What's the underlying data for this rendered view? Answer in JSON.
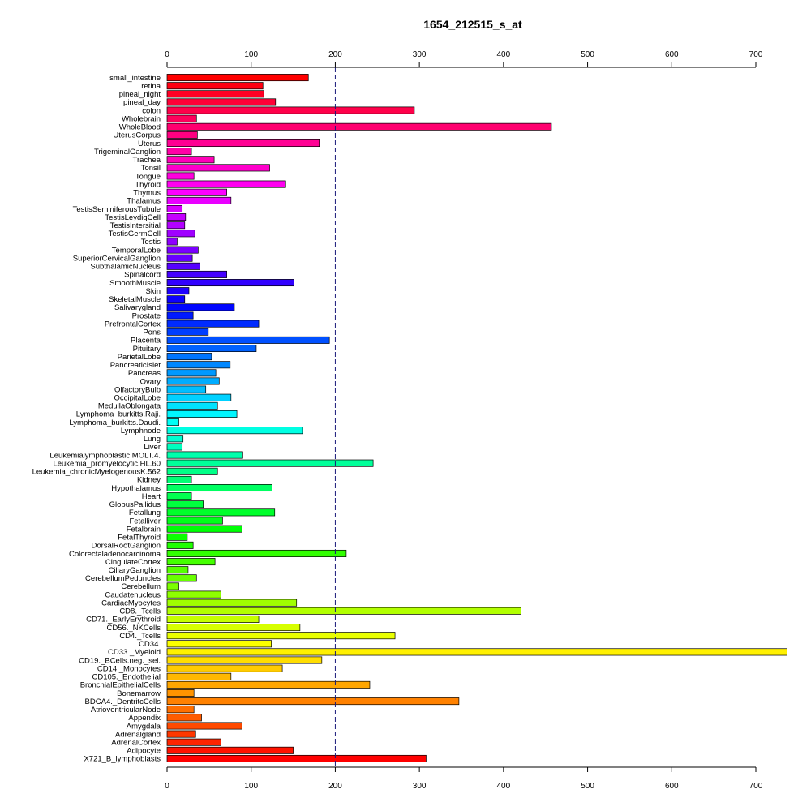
{
  "chart_data": {
    "type": "bar",
    "orientation": "horizontal",
    "title": "1654_212515_s_at",
    "xlim": [
      0,
      700
    ],
    "xticks": [
      0,
      100,
      200,
      300,
      400,
      500,
      600,
      700
    ],
    "reference_line": 200,
    "grid": false,
    "categories": [
      "small_intestine",
      "retina",
      "pineal_night",
      "pineal_day",
      "colon",
      "Wholebrain",
      "WholeBlood",
      "UterusCorpus",
      "Uterus",
      "TrigeminalGanglion",
      "Trachea",
      "Tonsil",
      "Tongue",
      "Thyroid",
      "Thymus",
      "Thalamus",
      "TestisSeminiferousTubule",
      "TestisLeydigCell",
      "TestisIntersitial",
      "TestisGermCell",
      "Testis",
      "TemporalLobe",
      "SuperiorCervicalGanglion",
      "SubthalamicNucleus",
      "Spinalcord",
      "SmoothMuscle",
      "Skin",
      "SkeletalMuscle",
      "Salivarygland",
      "Prostate",
      "PrefrontalCortex",
      "Pons",
      "Placenta",
      "Pituitary",
      "ParietalLobe",
      "PancreaticIslet",
      "Pancreas",
      "Ovary",
      "OlfactoryBulb",
      "OccipitalLobe",
      "MedullaOblongata",
      "Lymphoma_burkitts.Raji.",
      "Lymphoma_burkitts.Daudi.",
      "Lymphnode",
      "Lung",
      "Liver",
      "Leukemialymphoblastic.MOLT.4.",
      "Leukemia_promyelocytic.HL.60",
      "Leukemia_chronicMyelogenousK.562",
      "Kidney",
      "Hypothalamus",
      "Heart",
      "GlobusPallidus",
      "Fetallung",
      "Fetalliver",
      "Fetalbrain",
      "FetalThyroid",
      "DorsalRootGanglion",
      "Colorectaladenocarcinoma",
      "CingulateCortex",
      "CiliaryGanglion",
      "CerebellumPeduncles",
      "Cerebellum",
      "Caudatenucleus",
      "CardiacMyocytes",
      "CD8._Tcells",
      "CD71._EarlyErythroid",
      "CD56._NKCells",
      "CD4._Tcells",
      "CD34.",
      "CD33._Myeloid",
      "CD19._BCells.neg._sel.",
      "CD14._Monocytes",
      "CD105._Endothelial",
      "BronchialEpithelialCells",
      "Bonemarrow",
      "BDCA4._DentritcCells",
      "AtrioventricularNode",
      "Appendix",
      "Amygdala",
      "Adrenalgland",
      "AdrenalCortex",
      "Adipocyte",
      "X721_B_lymphoblasts"
    ],
    "values": [
      168,
      114,
      115,
      129,
      294,
      35,
      457,
      36,
      181,
      29,
      56,
      122,
      32,
      141,
      71,
      76,
      18,
      22,
      21,
      33,
      12,
      37,
      30,
      39,
      71,
      151,
      26,
      21,
      80,
      31,
      109,
      49,
      193,
      106,
      53,
      75,
      58,
      62,
      46,
      76,
      60,
      83,
      14,
      161,
      19,
      18,
      90,
      245,
      60,
      29,
      125,
      29,
      43,
      128,
      66,
      89,
      24,
      31,
      213,
      57,
      25,
      35,
      14,
      64,
      154,
      421,
      109,
      158,
      271,
      124,
      737,
      184,
      137,
      76,
      241,
      32,
      347,
      32,
      41,
      89,
      34,
      64,
      150,
      308
    ]
  }
}
